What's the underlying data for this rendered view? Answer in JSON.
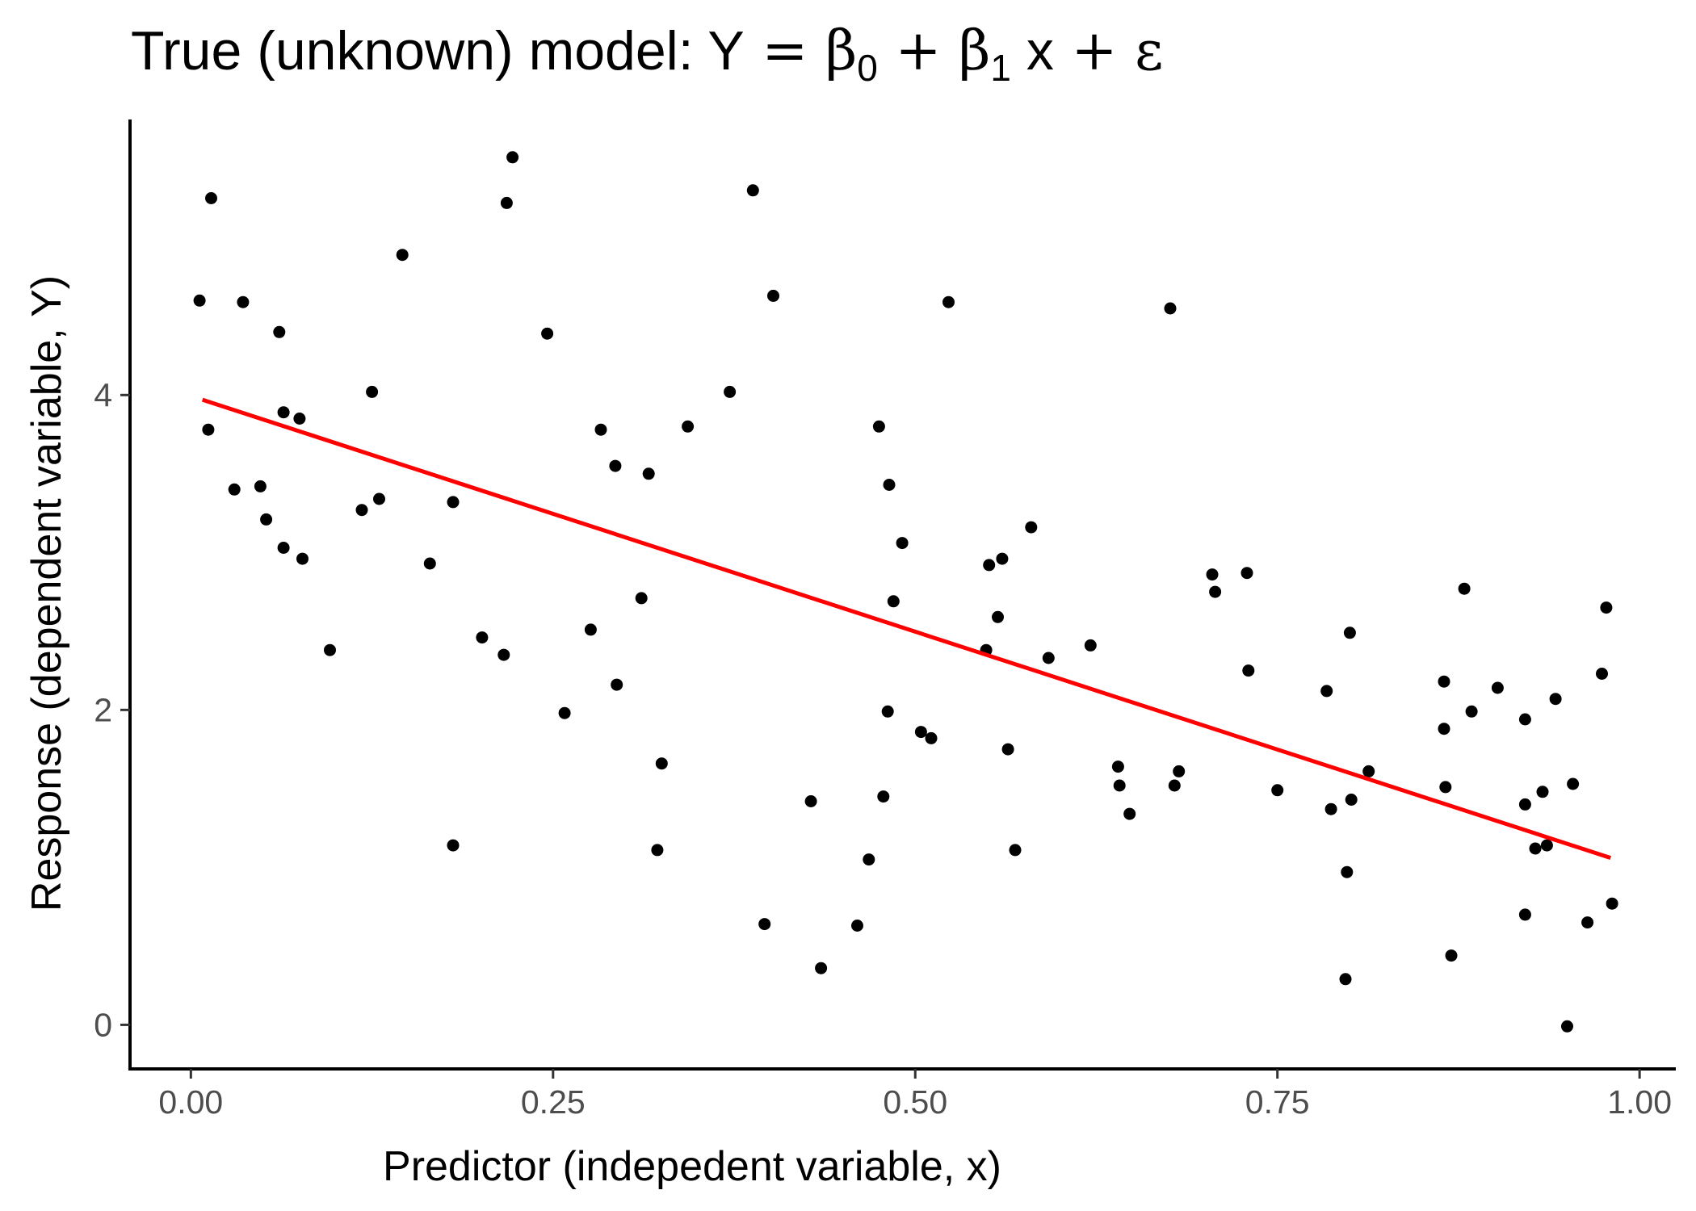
{
  "chart_data": {
    "type": "scatter",
    "title": {
      "prefix": "True (unknown) model: ",
      "y": "Y",
      "eq": " = ",
      "beta": "β",
      "sub0": "0",
      "plus": " + ",
      "sub1": "1",
      "x": " x",
      "eps": "ε"
    },
    "xlabel": "Predictor (indepedent variable, x)",
    "ylabel": "Response (dependent variable, Y)",
    "xlim": [
      -0.042,
      1.025
    ],
    "ylim": [
      -0.28,
      5.75
    ],
    "x_ticks": [
      {
        "value": 0,
        "label": "0.00"
      },
      {
        "value": 0.25,
        "label": "0.25"
      },
      {
        "value": 0.5,
        "label": "0.50"
      },
      {
        "value": 0.75,
        "label": "0.75"
      },
      {
        "value": 1,
        "label": "1.00"
      }
    ],
    "y_ticks": [
      {
        "value": 0,
        "label": "0"
      },
      {
        "value": 2,
        "label": "2"
      },
      {
        "value": 4,
        "label": "4"
      }
    ],
    "grid": false,
    "point_color": "#000000",
    "line_color": "#ff0000",
    "fit_line": {
      "x": [
        0.008,
        0.98
      ],
      "y": [
        3.97,
        1.06
      ]
    },
    "points": [
      [
        0.006,
        4.6
      ],
      [
        0.014,
        5.25
      ],
      [
        0.012,
        3.78
      ],
      [
        0.03,
        3.4
      ],
      [
        0.036,
        4.59
      ],
      [
        0.048,
        3.42
      ],
      [
        0.052,
        3.21
      ],
      [
        0.061,
        4.4
      ],
      [
        0.064,
        3.89
      ],
      [
        0.064,
        3.03
      ],
      [
        0.075,
        3.85
      ],
      [
        0.077,
        2.96
      ],
      [
        0.096,
        2.38
      ],
      [
        0.118,
        3.27
      ],
      [
        0.125,
        4.02
      ],
      [
        0.13,
        3.34
      ],
      [
        0.146,
        4.89
      ],
      [
        0.165,
        2.93
      ],
      [
        0.181,
        3.32
      ],
      [
        0.181,
        1.14
      ],
      [
        0.201,
        2.46
      ],
      [
        0.216,
        2.35
      ],
      [
        0.218,
        5.22
      ],
      [
        0.222,
        5.51
      ],
      [
        0.246,
        4.39
      ],
      [
        0.258,
        1.98
      ],
      [
        0.276,
        2.51
      ],
      [
        0.283,
        3.78
      ],
      [
        0.293,
        3.55
      ],
      [
        0.294,
        2.16
      ],
      [
        0.311,
        2.71
      ],
      [
        0.316,
        3.5
      ],
      [
        0.322,
        1.11
      ],
      [
        0.325,
        1.66
      ],
      [
        0.343,
        3.8
      ],
      [
        0.372,
        4.02
      ],
      [
        0.388,
        5.3
      ],
      [
        0.396,
        0.64
      ],
      [
        0.402,
        4.63
      ],
      [
        0.428,
        1.42
      ],
      [
        0.435,
        0.36
      ],
      [
        0.46,
        0.63
      ],
      [
        0.468,
        1.05
      ],
      [
        0.475,
        3.8
      ],
      [
        0.478,
        1.45
      ],
      [
        0.481,
        1.99
      ],
      [
        0.482,
        3.43
      ],
      [
        0.485,
        2.69
      ],
      [
        0.491,
        3.06
      ],
      [
        0.504,
        1.86
      ],
      [
        0.511,
        1.82
      ],
      [
        0.523,
        4.59
      ],
      [
        0.549,
        2.38
      ],
      [
        0.551,
        2.92
      ],
      [
        0.557,
        2.59
      ],
      [
        0.56,
        2.96
      ],
      [
        0.564,
        1.75
      ],
      [
        0.569,
        1.11
      ],
      [
        0.58,
        3.16
      ],
      [
        0.592,
        2.33
      ],
      [
        0.621,
        2.41
      ],
      [
        0.64,
        1.64
      ],
      [
        0.641,
        1.52
      ],
      [
        0.648,
        1.34
      ],
      [
        0.676,
        4.55
      ],
      [
        0.679,
        1.52
      ],
      [
        0.682,
        1.61
      ],
      [
        0.705,
        2.86
      ],
      [
        0.707,
        2.75
      ],
      [
        0.729,
        2.87
      ],
      [
        0.73,
        2.25
      ],
      [
        0.75,
        1.49
      ],
      [
        0.784,
        2.12
      ],
      [
        0.787,
        1.37
      ],
      [
        0.797,
        0.29
      ],
      [
        0.798,
        0.97
      ],
      [
        0.8,
        2.49
      ],
      [
        0.801,
        1.43
      ],
      [
        0.813,
        1.61
      ],
      [
        0.865,
        2.18
      ],
      [
        0.865,
        1.88
      ],
      [
        0.866,
        1.51
      ],
      [
        0.87,
        0.44
      ],
      [
        0.879,
        2.77
      ],
      [
        0.884,
        1.99
      ],
      [
        0.902,
        2.14
      ],
      [
        0.921,
        1.94
      ],
      [
        0.921,
        1.4
      ],
      [
        0.921,
        0.7
      ],
      [
        0.928,
        1.12
      ],
      [
        0.933,
        1.48
      ],
      [
        0.936,
        1.14
      ],
      [
        0.942,
        2.07
      ],
      [
        0.95,
        -0.01
      ],
      [
        0.954,
        1.53
      ],
      [
        0.964,
        0.65
      ],
      [
        0.974,
        2.23
      ],
      [
        0.977,
        2.65
      ],
      [
        0.981,
        0.77
      ]
    ]
  }
}
